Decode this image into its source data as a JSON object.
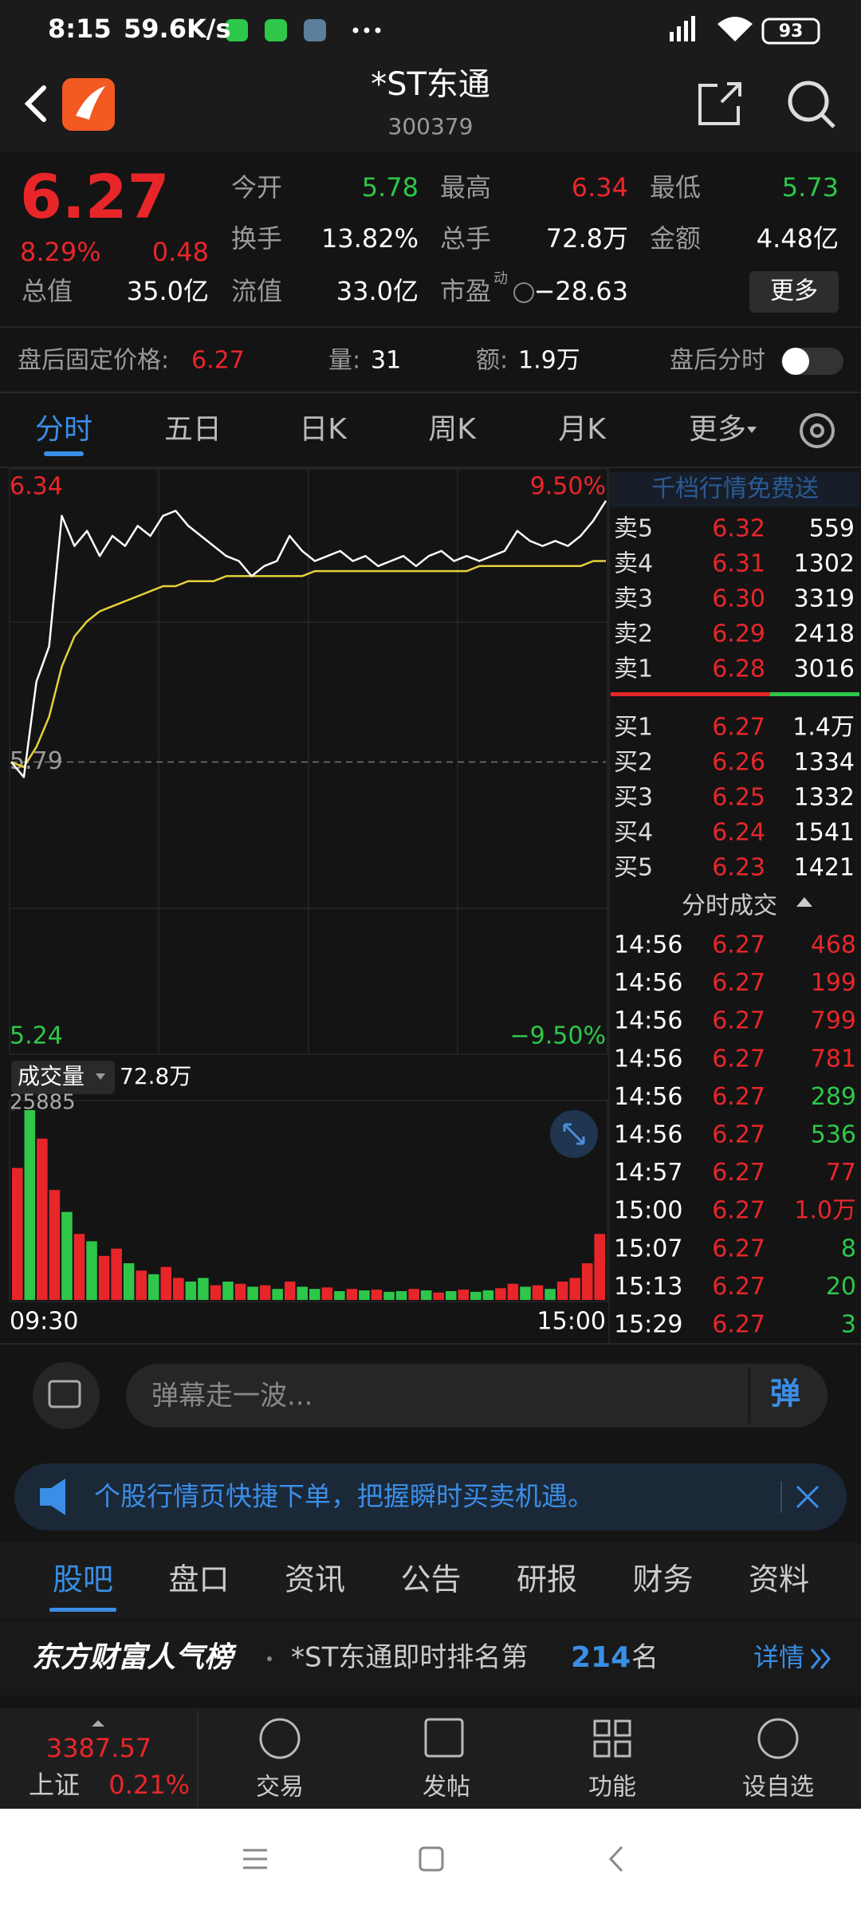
{
  "status_bar": {
    "time": "8:15",
    "speed": "59.6K/s",
    "battery": "93"
  },
  "header": {
    "title": "*ST东通",
    "code": "300379"
  },
  "quote": {
    "price": "6.27",
    "change_pct": "8.29%",
    "change": "0.48",
    "fields": [
      {
        "label": "今开",
        "value": "5.78",
        "color": "#2ec74a"
      },
      {
        "label": "最高",
        "value": "6.34",
        "color": "#e8262a"
      },
      {
        "label": "最低",
        "value": "5.73",
        "color": "#2ec74a"
      },
      {
        "label": "换手",
        "value": "13.82%",
        "color": "#ffffff"
      },
      {
        "label": "总手",
        "value": "72.8万",
        "color": "#ffffff"
      },
      {
        "label": "金额",
        "value": "4.48亿",
        "color": "#ffffff"
      },
      {
        "label": "总值",
        "value": "35.0亿",
        "color": "#ffffff"
      },
      {
        "label": "流值",
        "value": "33.0亿",
        "color": "#ffffff"
      },
      {
        "label": "市盈",
        "value": "−28.63",
        "color": "#ffffff"
      }
    ],
    "pe_tag": "动",
    "more": "更多"
  },
  "after_hours": {
    "label": "盘后固定价格:",
    "price": "6.27",
    "vol_label": "量:",
    "vol": "31",
    "amt_label": "额:",
    "amt": "1.9万",
    "chart_label": "盘后分时"
  },
  "tabs": [
    "分时",
    "五日",
    "日K",
    "周K",
    "月K",
    "更多"
  ],
  "intraday": {
    "ylim": [
      5.24,
      6.34
    ],
    "yticks": [
      5.24,
      5.79,
      6.34
    ],
    "y2lim": [
      -9.5,
      9.5
    ],
    "y2ticks": [
      {
        "value": -9.5,
        "label": "−9.50%"
      },
      {
        "value": 9.5,
        "label": "9.50%"
      }
    ],
    "price": {
      "color": "#ffffff",
      "values": [
        5.79,
        5.76,
        5.95,
        6.02,
        6.28,
        6.22,
        6.25,
        6.2,
        6.24,
        6.22,
        6.26,
        6.24,
        6.28,
        6.29,
        6.26,
        6.24,
        6.22,
        6.2,
        6.19,
        6.16,
        6.18,
        6.19,
        6.24,
        6.21,
        6.19,
        6.2,
        6.21,
        6.19,
        6.2,
        6.18,
        6.19,
        6.2,
        6.18,
        6.2,
        6.21,
        6.19,
        6.2,
        6.19,
        6.2,
        6.21,
        6.25,
        6.23,
        6.22,
        6.23,
        6.22,
        6.24,
        6.27,
        6.31
      ]
    },
    "average": {
      "color": "#e6d13a",
      "values": [
        5.79,
        5.78,
        5.82,
        5.88,
        5.98,
        6.04,
        6.07,
        6.09,
        6.1,
        6.11,
        6.12,
        6.13,
        6.14,
        6.14,
        6.15,
        6.15,
        6.15,
        6.16,
        6.16,
        6.16,
        6.16,
        6.16,
        6.16,
        6.16,
        6.17,
        6.17,
        6.17,
        6.17,
        6.17,
        6.17,
        6.17,
        6.17,
        6.17,
        6.17,
        6.17,
        6.17,
        6.17,
        6.18,
        6.18,
        6.18,
        6.18,
        6.18,
        6.18,
        6.18,
        6.18,
        6.18,
        6.19,
        6.19
      ]
    },
    "volume": {
      "label": "成交量",
      "total": "72.8万",
      "ylim": [
        0,
        25885
      ],
      "yticks": [
        25885
      ],
      "values": [
        18000,
        25885,
        22000,
        15000,
        12000,
        9000,
        8000,
        6000,
        7000,
        5000,
        4000,
        3500,
        4500,
        3000,
        2500,
        3000,
        2000,
        2500,
        2200,
        1800,
        2000,
        1500,
        2500,
        1800,
        1500,
        1700,
        1200,
        1500,
        1300,
        1400,
        1100,
        1200,
        1500,
        1300,
        1000,
        1200,
        1400,
        1100,
        1300,
        1600,
        2200,
        1800,
        2000,
        1500,
        2500,
        3000,
        5000,
        9000
      ],
      "colors": [
        "#e8262a",
        "#2ec74a",
        "#e8262a",
        "#e8262a",
        "#2ec74a",
        "#e8262a",
        "#2ec74a",
        "#e8262a",
        "#e8262a",
        "#2ec74a",
        "#e8262a",
        "#2ec74a",
        "#e8262a",
        "#e8262a",
        "#2ec74a",
        "#2ec74a",
        "#e8262a",
        "#2ec74a",
        "#e8262a",
        "#2ec74a",
        "#e8262a",
        "#2ec74a",
        "#e8262a",
        "#2ec74a",
        "#2ec74a",
        "#e8262a",
        "#2ec74a",
        "#e8262a",
        "#2ec74a",
        "#e8262a",
        "#2ec74a",
        "#2ec74a",
        "#e8262a",
        "#2ec74a",
        "#e8262a",
        "#2ec74a",
        "#e8262a",
        "#2ec74a",
        "#2ec74a",
        "#e8262a",
        "#e8262a",
        "#2ec74a",
        "#e8262a",
        "#2ec74a",
        "#e8262a",
        "#e8262a",
        "#e8262a",
        "#e8262a"
      ]
    },
    "start_time": "09:30",
    "end_time": "15:00"
  },
  "order_book": {
    "title": "千档行情免费送",
    "asks": [
      {
        "label": "卖5",
        "price": "6.32",
        "vol": "559"
      },
      {
        "label": "卖4",
        "price": "6.31",
        "vol": "1302"
      },
      {
        "label": "卖3",
        "price": "6.30",
        "vol": "3319"
      },
      {
        "label": "卖2",
        "price": "6.29",
        "vol": "2418"
      },
      {
        "label": "卖1",
        "price": "6.28",
        "vol": "3016"
      }
    ],
    "bids": [
      {
        "label": "买1",
        "price": "6.27",
        "vol": "1.4万"
      },
      {
        "label": "买2",
        "price": "6.26",
        "vol": "1334"
      },
      {
        "label": "买3",
        "price": "6.25",
        "vol": "1332"
      },
      {
        "label": "买4",
        "price": "6.24",
        "vol": "1541"
      },
      {
        "label": "买5",
        "price": "6.23",
        "vol": "1421"
      }
    ]
  },
  "trades": {
    "title": "分时成交",
    "rows": [
      {
        "time": "14:56",
        "price": "6.27",
        "vol": "468",
        "color": "#e8262a"
      },
      {
        "time": "14:56",
        "price": "6.27",
        "vol": "199",
        "color": "#e8262a"
      },
      {
        "time": "14:56",
        "price": "6.27",
        "vol": "799",
        "color": "#e8262a"
      },
      {
        "time": "14:56",
        "price": "6.27",
        "vol": "781",
        "color": "#e8262a"
      },
      {
        "time": "14:56",
        "price": "6.27",
        "vol": "289",
        "color": "#2ec74a"
      },
      {
        "time": "14:56",
        "price": "6.27",
        "vol": "536",
        "color": "#2ec74a"
      },
      {
        "time": "14:57",
        "price": "6.27",
        "vol": "77",
        "color": "#e8262a"
      },
      {
        "time": "15:00",
        "price": "6.27",
        "vol": "1.0万",
        "color": "#e8262a"
      },
      {
        "time": "15:07",
        "price": "6.27",
        "vol": "8",
        "color": "#2ec74a"
      },
      {
        "time": "15:13",
        "price": "6.27",
        "vol": "20",
        "color": "#2ec74a"
      },
      {
        "time": "15:29",
        "price": "6.27",
        "vol": "3",
        "color": "#2ec74a"
      }
    ]
  },
  "danmaku": {
    "placeholder": "弹幕走一波...",
    "button": "弹"
  },
  "banner": {
    "text": "个股行情页快捷下单，把握瞬时买卖机遇。"
  },
  "bottom_tabs": [
    "股吧",
    "盘口",
    "资讯",
    "公告",
    "研报",
    "财务",
    "资料"
  ],
  "ranking": {
    "brand": "东方财富人气榜",
    "text": "*ST东通即时排名第",
    "rank": "214",
    "suffix": "名",
    "detail": "详情"
  },
  "bottom_nav": {
    "index_value": "3387.57",
    "index_name": "上证",
    "index_change": "0.21%",
    "items": [
      "交易",
      "发帖",
      "功能",
      "设自选"
    ]
  }
}
